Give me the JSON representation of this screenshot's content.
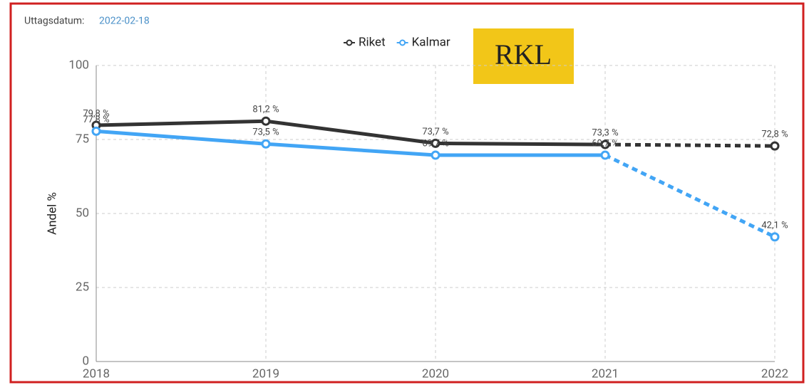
{
  "header": {
    "label": "Uttagsdatum:",
    "date": "2022-02-18"
  },
  "badge": "RKL",
  "chart_data": {
    "type": "line",
    "ylabel": "Andel %",
    "categories": [
      "2018",
      "2019",
      "2020",
      "2021",
      "2022"
    ],
    "series": [
      {
        "name": "Riket",
        "color": "#333333",
        "values": [
          79.8,
          81.2,
          73.7,
          73.3,
          72.8
        ],
        "value_labels": [
          "79,8 %",
          "81,2 %",
          "73,7 %",
          "73,3 %",
          "72,8 %"
        ]
      },
      {
        "name": "Kalmar",
        "color": "#42a5f5",
        "values": [
          77.8,
          73.5,
          69.7,
          69.7,
          42.1
        ],
        "value_labels": [
          "77,8 %",
          "73,5 %",
          "69,7 %",
          "69,7 %",
          "42,1 %"
        ]
      }
    ],
    "dashed_last_segment": true,
    "ylim": [
      0,
      100
    ],
    "yticks": [
      0,
      25,
      50,
      75,
      100
    ],
    "grid": true,
    "legend": "top"
  }
}
